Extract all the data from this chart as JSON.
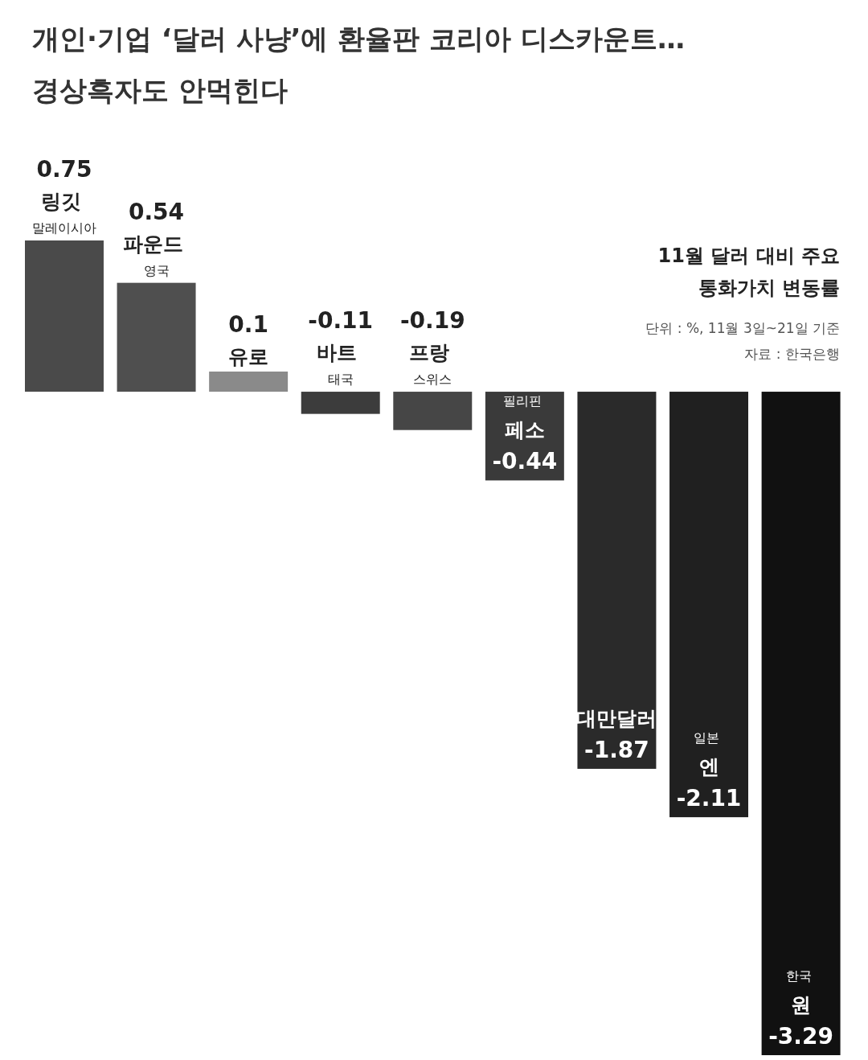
{
  "chart_data": {
    "type": "bar",
    "title": "개인·기업 ‘달러 사냥’에 환율판 코리아 디스카운트… 경상흑자도 안먹힌다",
    "subtitle": "11월 달러 대비 주요 통화가치 변동률",
    "categories": [
      "링깃 말레이시아",
      "파운드 영국",
      "유로",
      "바트 태국",
      "프랑 스위스",
      "필리핀 페소",
      "대만달러",
      "일본 엔",
      "한국 원"
    ],
    "values": [
      0.75,
      0.54,
      0.1,
      -0.11,
      -0.19,
      -0.44,
      -1.87,
      -2.11,
      -3.29
    ],
    "colors": [
      "#4a4a4a",
      "#4f4f4f",
      "#8a8a8a",
      "#3c3c3c",
      "#464646",
      "#3a3a3a",
      "#2a2a2a",
      "#202020",
      "#111111"
    ],
    "data_labels": true,
    "annotations": [
      "단위 : %, 11월 3일~21일 기준",
      "자료 : 한국은행"
    ]
  }
}
